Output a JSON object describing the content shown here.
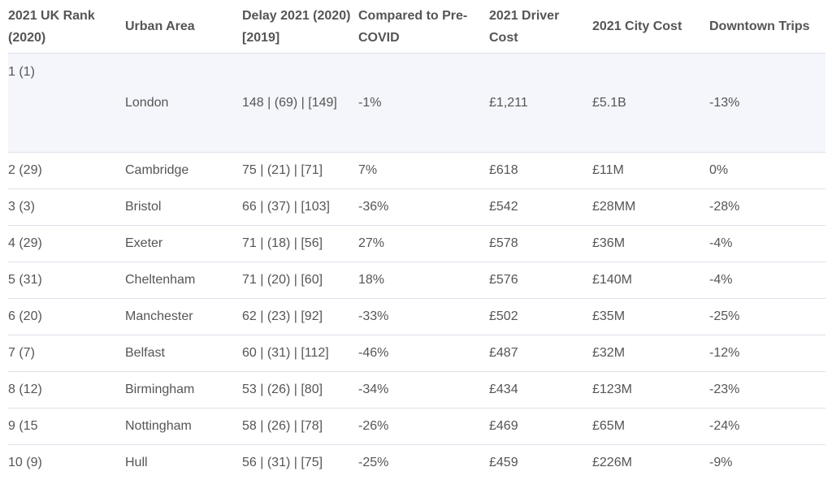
{
  "table": {
    "header": [
      "2021 UK Rank (2020)",
      "Urban Area",
      "Delay 2021 (2020) [2019]",
      "Compared to Pre-COVID",
      "2021 Driver Cost",
      "2021 City Cost",
      "Downtown Trips"
    ],
    "rows": [
      [
        "1 (1)",
        "London",
        "148 | (69) | [149]",
        "-1%",
        "£1,211",
        "£5.1B",
        "-13%"
      ],
      [
        "2 (29)",
        "Cambridge",
        "75 | (21) | [71]",
        "7%",
        "£618",
        "£11M",
        "0%"
      ],
      [
        "3 (3)",
        "Bristol",
        "66 | (37) | [103]",
        "-36%",
        "£542",
        "£28MM",
        "-28%"
      ],
      [
        "4 (29)",
        "Exeter",
        "71 | (18) | [56]",
        "27%",
        "£578",
        "£36M",
        "-4%"
      ],
      [
        "5 (31)",
        "Cheltenham",
        "71 | (20) | [60]",
        "18%",
        "£576",
        "£140M",
        "-4%"
      ],
      [
        "6 (20)",
        "Manchester",
        "62 | (23) | [92]",
        "-33%",
        "£502",
        "£35M",
        "-25%"
      ],
      [
        "7 (7)",
        "Belfast",
        "60 | (31) | [112]",
        "-46%",
        "£487",
        "£32M",
        "-12%"
      ],
      [
        "8 (12)",
        "Birmingham",
        "53 | (26) | [80]",
        "-34%",
        "£434",
        "£123M",
        "-23%"
      ],
      [
        "9 (15",
        "Nottingham",
        "58 | (26) | [78]",
        "-26%",
        "£469",
        "£65M",
        "-24%"
      ],
      [
        "10 (9)",
        "Hull",
        "56 | (31) | [75]",
        "-25%",
        "£459",
        "£226M",
        "-9%"
      ]
    ]
  }
}
